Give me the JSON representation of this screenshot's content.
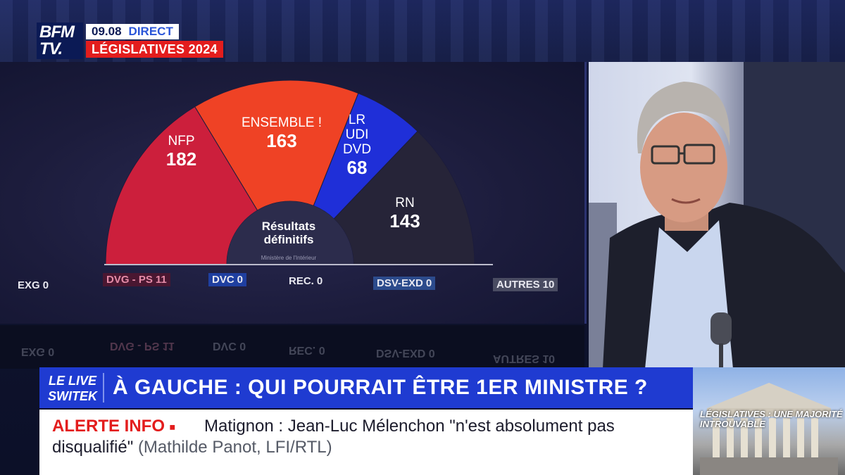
{
  "channel": {
    "logo_line1": "BFM",
    "logo_line2": "TV.",
    "time": "09.08",
    "live": "DIRECT",
    "show": "LÉGISLATIVES 2024"
  },
  "chart_data": {
    "type": "pie",
    "style": "half-donut",
    "center_label": [
      "Résultats",
      "définitifs"
    ],
    "source": "Ministère de l'Intérieur",
    "slices": [
      {
        "name": "NFP",
        "value": 182,
        "color": "#cc1f3c"
      },
      {
        "name": "ENSEMBLE !",
        "value": 163,
        "color": "#ef4225"
      },
      {
        "name": "LR UDI DVD",
        "value": 68,
        "color": "#1f2fd8"
      },
      {
        "name": "RN",
        "value": 143,
        "color": "#262438"
      }
    ],
    "other_groups": [
      {
        "name": "EXG",
        "value": 0,
        "color": "transparent"
      },
      {
        "name": "DVG - PS",
        "value": 11,
        "color": "#4a1731"
      },
      {
        "name": "DVC",
        "value": 0,
        "color": "#1f3fa0"
      },
      {
        "name": "REC.",
        "value": 0,
        "color": "transparent"
      },
      {
        "name": "DSV-EXD",
        "value": 0,
        "color": "#2c4b8c"
      },
      {
        "name": "AUTRES",
        "value": 10,
        "color": "#4a4c62"
      }
    ]
  },
  "ticker": {
    "tag_line1": "LE LIVE",
    "tag_line2": "SWITEK",
    "headline": "À GAUCHE : QUI POURRAIT ÊTRE 1ER MINISTRE ?"
  },
  "alert": {
    "label": "ALERTE INFO",
    "text_line1": "Matignon : Jean-Luc Mélenchon \"n'est absolument pas",
    "text_line2": "disqualifié\"",
    "source": "(Mathilde Panot, LFI/RTL)"
  },
  "thumbnail": {
    "caption_line1": "LÉGISLATIVES : UNE MAJORITÉ",
    "caption_line2": "INTROUVABLE"
  }
}
